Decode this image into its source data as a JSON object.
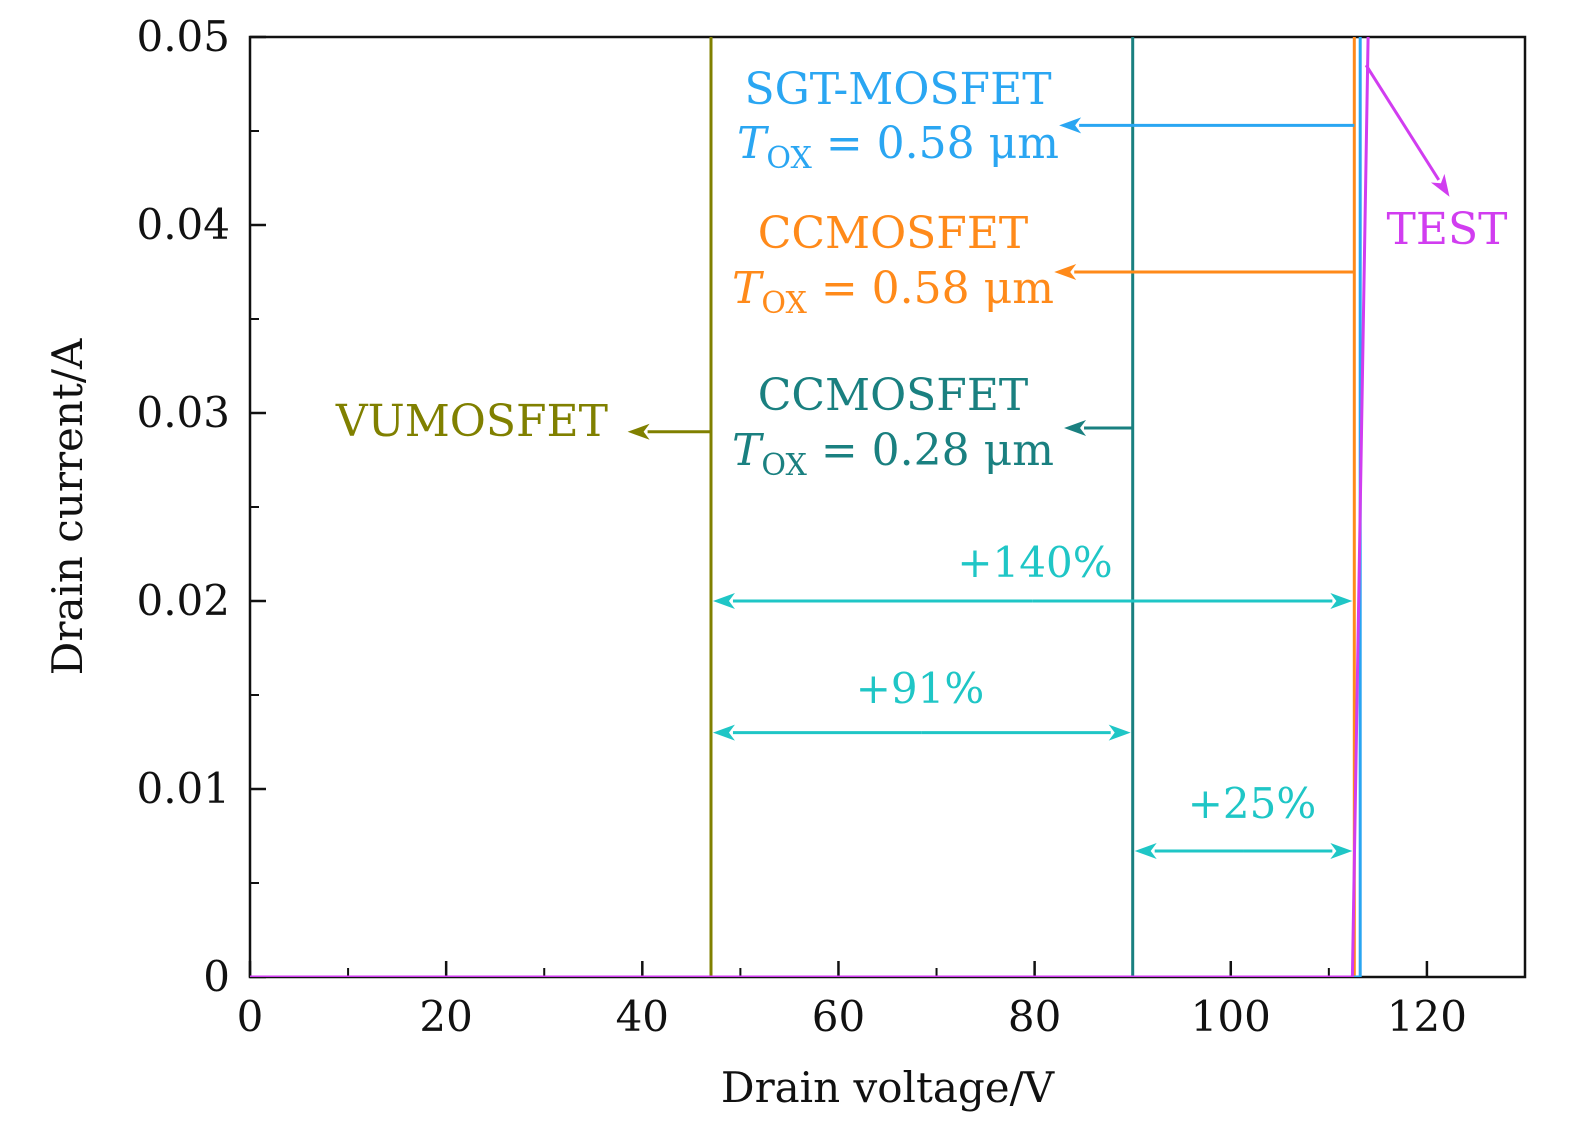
{
  "chart_data": {
    "type": "line",
    "xlabel": "Drain voltage/V",
    "ylabel": "Drain current/A",
    "xlim": [
      0,
      130
    ],
    "ylim": [
      0,
      0.05
    ],
    "x_ticks": [
      0,
      20,
      40,
      60,
      80,
      100,
      120
    ],
    "x_tick_labels": [
      "0",
      "20",
      "40",
      "60",
      "80",
      "100",
      "120"
    ],
    "x_minor_ticks": [
      10,
      30,
      50,
      70,
      90,
      110
    ],
    "y_ticks": [
      0,
      0.01,
      0.02,
      0.03,
      0.04,
      0.05
    ],
    "y_tick_labels": [
      "0",
      "0.01",
      "0.02",
      "0.03",
      "0.04",
      "0.05"
    ],
    "y_minor_ticks": [
      0.005,
      0.015,
      0.025,
      0.035,
      0.045
    ],
    "grid": false,
    "series": [
      {
        "color": "#808000",
        "x": [
          0,
          47,
          47
        ],
        "y": [
          0,
          0,
          0.05
        ]
      },
      {
        "color": "#1a8080",
        "x": [
          0,
          90,
          90
        ],
        "y": [
          0,
          0,
          0.05
        ]
      },
      {
        "color": "#ff8a1a",
        "x": [
          0,
          112.6,
          112.6
        ],
        "y": [
          0,
          0,
          0.05
        ]
      },
      {
        "color": "#2aa6f2",
        "x": [
          0,
          113.2,
          113.2
        ],
        "y": [
          0,
          0,
          0.05
        ]
      },
      {
        "color": "#d13df0",
        "x": [
          0,
          112.4,
          114
        ],
        "y": [
          0,
          0,
          0.05
        ]
      }
    ],
    "annotations": {
      "vumos": {
        "text": "VUMOSFET",
        "color": "#808000",
        "arrow_from": [
          47,
          0.029
        ],
        "arrow_to": [
          38.5,
          0.029
        ]
      },
      "cc028": {
        "line1": "CCMOSFET",
        "tox_T": "T",
        "tox_sub": "OX",
        "tox_rest": " = 0.28 μm",
        "color": "#1a8080",
        "arrow_from": [
          90,
          0.0292
        ],
        "arrow_to": [
          83,
          0.0292
        ]
      },
      "cc058": {
        "line1": "CCMOSFET",
        "tox_T": "T",
        "tox_sub": "OX",
        "tox_rest": " = 0.58 μm",
        "color": "#ff8a1a",
        "arrow_from": [
          112.6,
          0.0375
        ],
        "arrow_to": [
          82,
          0.0375
        ]
      },
      "sgt": {
        "line1": "SGT-MOSFET",
        "tox_T": "T",
        "tox_sub": "OX",
        "tox_rest": " = 0.58 μm",
        "color": "#2aa6f2",
        "arrow_from": [
          112.6,
          0.0453
        ],
        "arrow_to": [
          82.5,
          0.0453
        ]
      },
      "test": {
        "text": "TEST",
        "color": "#d13df0",
        "arrow_from": [
          113.8,
          0.0485
        ],
        "arrow_to": [
          122.3,
          0.0415
        ]
      }
    },
    "percent_arrows": {
      "color": "#1fc6c6",
      "items": [
        {
          "label": "+140%",
          "x_from": 47,
          "x_to": 112.6,
          "y": 0.02
        },
        {
          "label": "+91%",
          "x_from": 47,
          "x_to": 90,
          "y": 0.013
        },
        {
          "label": "+25%",
          "x_from": 90,
          "x_to": 112.6,
          "y": 0.0067
        }
      ]
    }
  }
}
